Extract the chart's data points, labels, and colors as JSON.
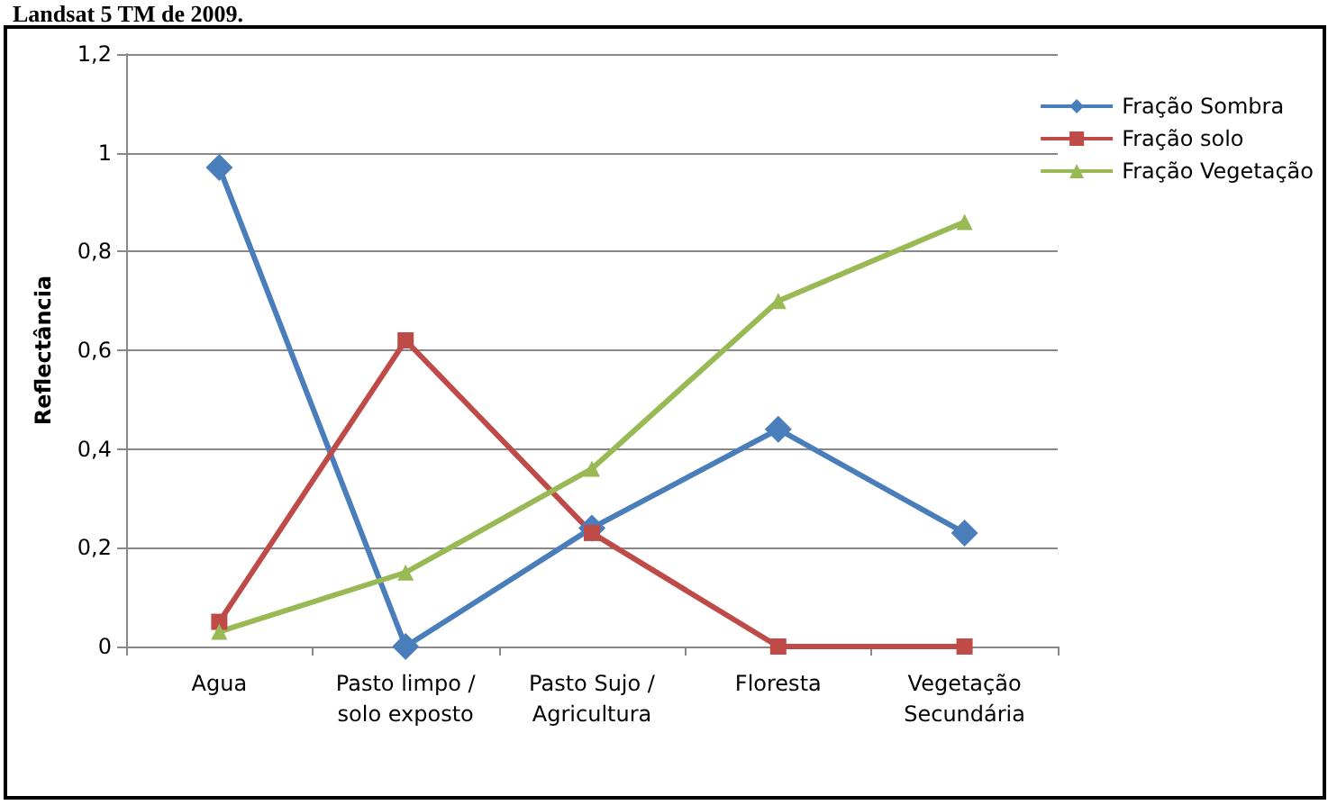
{
  "chart_data": {
    "type": "line",
    "title": "Landsat 5 TM de 2009.",
    "ylabel": "Reflectância",
    "categories": [
      "Agua",
      "Pasto limpo /\nsolo exposto",
      "Pasto Sujo /\nAgricultura",
      "Floresta",
      "Vegetação\nSecundária"
    ],
    "series": [
      {
        "name": "Fração Sombra",
        "color": "#4a7ebb",
        "marker": "diamond",
        "values": [
          0.97,
          0,
          0.24,
          0.44,
          0.23
        ]
      },
      {
        "name": "Fração solo",
        "color": "#be4b48",
        "marker": "square",
        "values": [
          0.05,
          0.62,
          0.23,
          0,
          0
        ]
      },
      {
        "name": "Fração Vegetação",
        "color": "#98b954",
        "marker": "triangle",
        "values": [
          0.03,
          0.15,
          0.36,
          0.7,
          0.86
        ]
      }
    ],
    "ylim": [
      0,
      1.2
    ],
    "yticks": [
      0,
      {
        "value": 0.2,
        "label": "0,2"
      },
      {
        "value": 0.4,
        "label": "0,4"
      },
      {
        "value": 0.6,
        "label": "0,6"
      },
      {
        "value": 0.8,
        "label": "0,8"
      },
      1,
      {
        "value": 1.2,
        "label": "1,2"
      }
    ],
    "grid": "y",
    "legend": "right",
    "line_style": "solid"
  }
}
